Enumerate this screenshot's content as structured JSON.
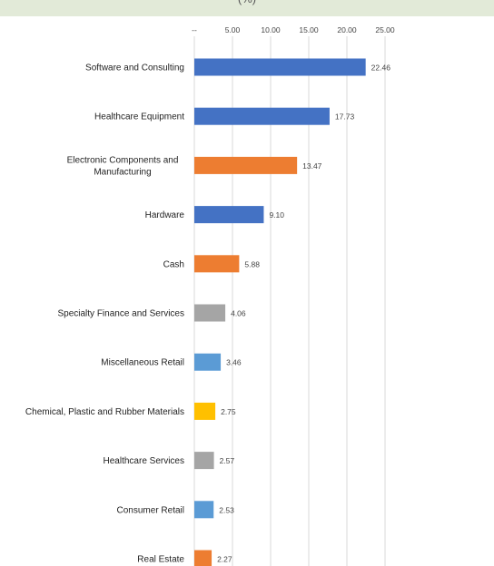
{
  "header": {
    "title_fragment": "(%)",
    "band_color": "#e2ead8"
  },
  "chart_data": {
    "type": "bar",
    "orientation": "horizontal",
    "x_tick_labels": [
      "--",
      "5.00",
      "10.00",
      "15.00",
      "20.00",
      "25.00"
    ],
    "xlim": [
      0,
      25
    ],
    "grid": true,
    "categories": [
      "Software and Consulting",
      "Healthcare Equipment",
      [
        "Electronic Components and",
        "Manufacturing"
      ],
      "Hardware",
      "Cash",
      "Specialty Finance and Services",
      "Miscellaneous Retail",
      "Chemical, Plastic and Rubber Materials",
      "Healthcare Services",
      "Consumer Retail",
      "Real Estate"
    ],
    "values": [
      22.46,
      17.73,
      13.47,
      9.1,
      5.88,
      4.06,
      3.46,
      2.75,
      2.57,
      2.53,
      2.27
    ],
    "value_labels": [
      "22.46",
      "17.73",
      "13.47",
      "9.10",
      "5.88",
      "4.06",
      "3.46",
      "2.75",
      "2.57",
      "2.53",
      "2.27"
    ],
    "bar_colors": [
      "#4472c4",
      "#4472c4",
      "#ed7d31",
      "#4472c4",
      "#ed7d31",
      "#a5a5a5",
      "#5b9bd5",
      "#ffc000",
      "#a5a5a5",
      "#5b9bd5",
      "#ed7d31"
    ],
    "grid_color": "#d9d9d9"
  }
}
